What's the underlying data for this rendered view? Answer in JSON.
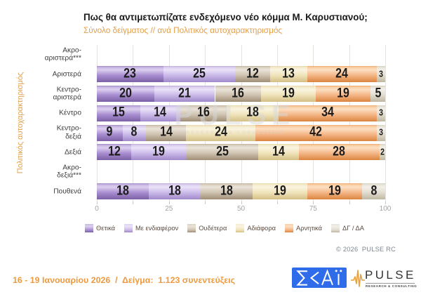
{
  "title": "Πως θα αντιμετωπίζατε ενδεχόμενο νέο κόμμα Μ. Καρυστιανού;",
  "subtitle": "Σύνολο δείγματος // ανά Πολιτικός αυτοχαρακτηρισμός",
  "accent_orange": "#e2a04b",
  "chart_data": {
    "type": "bar",
    "orientation": "horizontal_stacked",
    "ylabel": "Πολιτικός αυτοχαρακτηρισμός",
    "xlabel": "",
    "xlim": [
      0,
      100
    ],
    "x_ticks": [
      0,
      25,
      50,
      75,
      100
    ],
    "gridline_step": 12.5,
    "grid": true,
    "legend_position": "bottom",
    "categories": [
      "Ακρο-\nαριστερά***",
      "Αριστερά",
      "Κεντρο-\nαριστερά",
      "Κέντρο",
      "Κεντρο-\nδεξιά",
      "Δεξιά",
      "Ακρο-\nδεξιά***",
      "Πουθενά"
    ],
    "series": [
      {
        "name": "Θετικά",
        "color": "#a78ccb",
        "gradient": [
          "#a58bc8",
          "#c9b9e4",
          "#dccfef",
          "#a88dd0",
          "#7d61a6"
        ],
        "values": [
          null,
          23,
          20,
          15,
          9,
          12,
          null,
          18
        ]
      },
      {
        "name": "Με ενδιαφέρον",
        "color": "#c8b7e4",
        "gradient": [
          "#c0aeda",
          "#ddd2f0",
          "#eae2f8",
          "#cbbae8",
          "#a18ac9"
        ],
        "values": [
          null,
          25,
          21,
          14,
          8,
          19,
          null,
          18
        ]
      },
      {
        "name": "Ουδέτερα",
        "color": "#cbbeac",
        "gradient": [
          "#c2b4a0",
          "#ddd3c4",
          "#eae3d8",
          "#cfc2b0",
          "#a08f76"
        ],
        "values": [
          null,
          12,
          16,
          16,
          14,
          25,
          null,
          18
        ]
      },
      {
        "name": "Αδιάφορα",
        "color": "#efe2b8",
        "gradient": [
          "#e7d9ab",
          "#f4ecce",
          "#faf4e0",
          "#f0e3ba",
          "#d4bf85"
        ],
        "values": [
          null,
          13,
          19,
          18,
          24,
          14,
          null,
          19
        ]
      },
      {
        "name": "Αρνητικά",
        "color": "#f3b383",
        "gradient": [
          "#efad75",
          "#f9d0a6",
          "#fcdfc2",
          "#f4b687",
          "#db853f"
        ],
        "values": [
          null,
          24,
          19,
          34,
          42,
          28,
          null,
          19
        ]
      },
      {
        "name": "ΔΓ / ΔΑ",
        "color": "#e2ddd1",
        "gradient": [
          "#d8d2c2",
          "#e9e5da",
          "#f2efe9",
          "#e2ddd0",
          "#bfb7a2"
        ],
        "values": [
          null,
          3,
          5,
          3,
          3,
          2,
          null,
          8
        ]
      }
    ]
  },
  "watermark": {
    "line1": "PULSE",
    "line2": "RESEARCH & CONSULTING"
  },
  "copyright": "© 2026  PULSE RC",
  "footer": {
    "date_sample": "16 - 19 Ιανουαρίου 2026  /  Δείγμα:  1.123 συνεντεύξεις",
    "skai_logo_text": "Σ<ΑΪ",
    "pulse_logo_text": "PULSE",
    "pulse_logo_subtext": "RESEARCH & CONSULTING"
  }
}
